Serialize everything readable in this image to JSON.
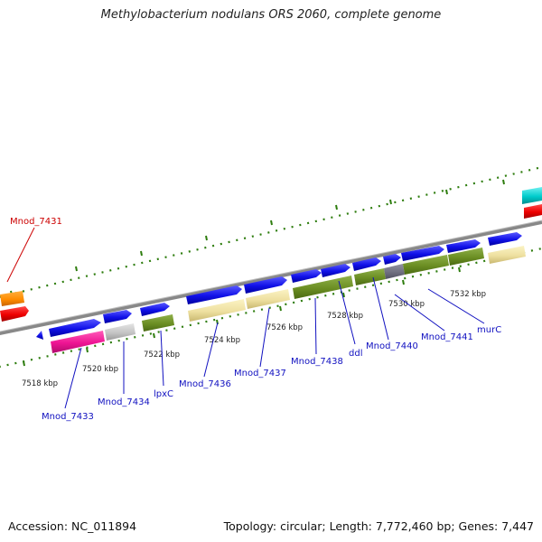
{
  "title": "Methylobacterium nodulans ORS 2060, complete genome",
  "footer": {
    "accession": "Accession: NC_011894",
    "topology": "Topology: circular; Length: 7,772,460 bp; Genes: 7,447"
  },
  "colors": {
    "backbone": "#888888",
    "ticks": "#2e7d0e",
    "gene_label": "#1010c0",
    "highlight_label": "#cc0000"
  },
  "scale_labels": [
    "7518 kbp",
    "7520 kbp",
    "7522 kbp",
    "7524 kbp",
    "7526 kbp",
    "7528 kbp",
    "7530 kbp",
    "7532 kbp"
  ],
  "gene_labels": [
    {
      "text": "Mnod_7431",
      "color": "red"
    },
    {
      "text": "Mnod_7433",
      "color": "blue"
    },
    {
      "text": "Mnod_7434",
      "color": "blue"
    },
    {
      "text": "lpxC",
      "color": "blue"
    },
    {
      "text": "Mnod_7436",
      "color": "blue"
    },
    {
      "text": "Mnod_7437",
      "color": "blue"
    },
    {
      "text": "Mnod_7438",
      "color": "blue"
    },
    {
      "text": "ddl",
      "color": "blue"
    },
    {
      "text": "Mnod_7440",
      "color": "blue"
    },
    {
      "text": "Mnod_7441",
      "color": "blue"
    },
    {
      "text": "murC",
      "color": "blue"
    }
  ],
  "gene_color_names": [
    "blue",
    "pink",
    "grey",
    "olive-green",
    "pale-yellow",
    "dark-grey",
    "orange",
    "red",
    "cyan"
  ]
}
